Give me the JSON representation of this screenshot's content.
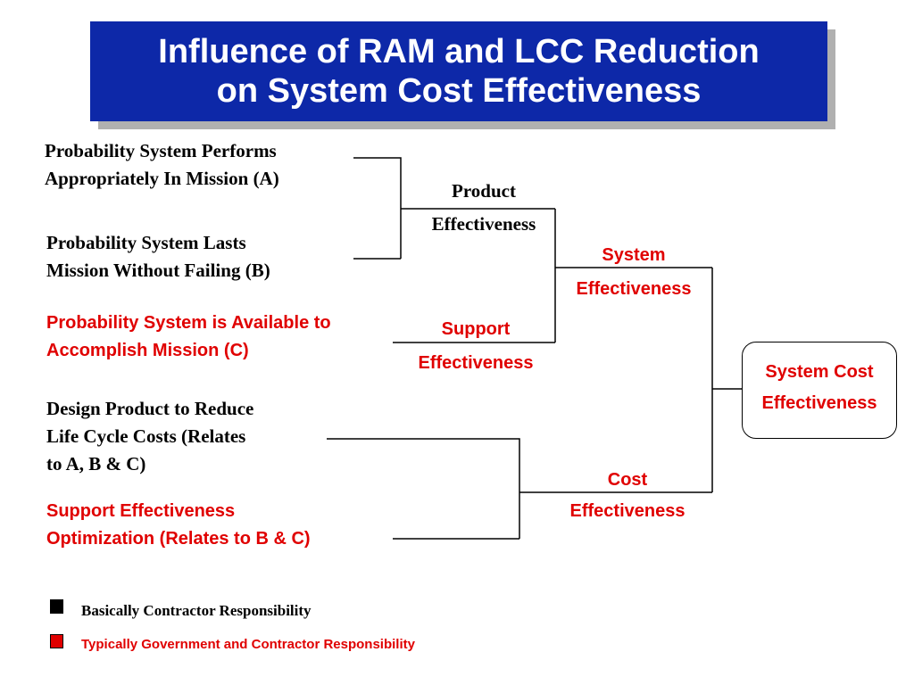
{
  "title": {
    "line1": "Influence of RAM and LCC Reduction",
    "line2": "on System Cost Effectiveness"
  },
  "inputs": {
    "a": {
      "line1": "Probability System Performs",
      "line2": "Appropriately In Mission (A)"
    },
    "b": {
      "line1": "Probability System Lasts",
      "line2": "Mission Without Failing (B)"
    },
    "c": {
      "line1": "Probability System is Available to",
      "line2": "Accomplish Mission (C)"
    },
    "d": {
      "line1": "Design Product to Reduce",
      "line2": "Life Cycle Costs (Relates",
      "line3": "to A, B & C)"
    },
    "e": {
      "line1": "Support Effectiveness",
      "line2": "Optimization (Relates to B & C)"
    }
  },
  "nodes": {
    "product": {
      "line1": "Product",
      "line2": "Effectiveness"
    },
    "support": {
      "line1": "Support",
      "line2": "Effectiveness"
    },
    "system": {
      "line1": "System",
      "line2": "Effectiveness"
    },
    "cost": {
      "line1": "Cost",
      "line2": "Effectiveness"
    },
    "result": {
      "line1": "System Cost",
      "line2": "Effectiveness"
    }
  },
  "legend": {
    "black": {
      "label": "Basically Contractor Responsibility",
      "color": "#000000"
    },
    "red": {
      "label": "Typically Government and Contractor Responsibility",
      "color": "#e00000"
    }
  },
  "colors": {
    "title_bg": "#0d28a8",
    "accent_red": "#e00000"
  }
}
